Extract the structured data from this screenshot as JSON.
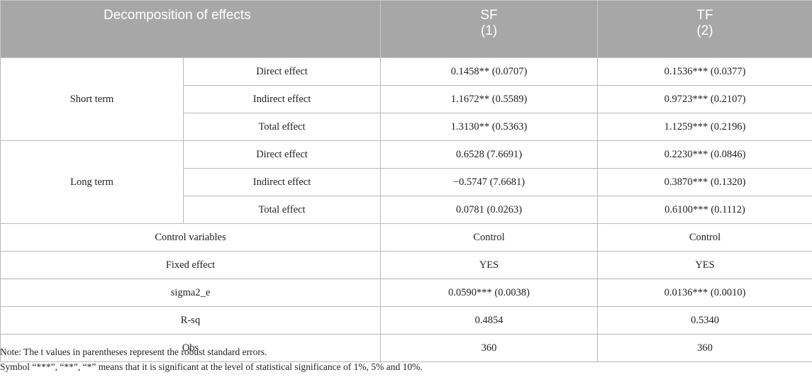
{
  "header": {
    "decomposition": "Decomposition of effects",
    "col1_name": "SF",
    "col1_num": "(1)",
    "col2_name": "TF",
    "col2_num": "(2)"
  },
  "short_term": {
    "label": "Short term",
    "rows": [
      {
        "effect": "Direct effect",
        "sf": "0.1458** (0.0707)",
        "tf": "0.1536*** (0.0377)"
      },
      {
        "effect": "Indirect effect",
        "sf": "1.1672** (0.5589)",
        "tf": "0.9723*** (0.2107)"
      },
      {
        "effect": "Total effect",
        "sf": "1.3130** (0.5363)",
        "tf": "1.1259*** (0.2196)"
      }
    ]
  },
  "long_term": {
    "label": "Long term",
    "rows": [
      {
        "effect": "Direct effect",
        "sf": "0.6528 (7.6691)",
        "tf": "0.2230*** (0.0846)"
      },
      {
        "effect": "Indirect effect",
        "sf": "−0.5747 (7.6681)",
        "tf": "0.3870*** (0.1320)"
      },
      {
        "effect": "Total effect",
        "sf": "0.0781 (0.0263)",
        "tf": "0.6100*** (0.1112)"
      }
    ]
  },
  "summary_rows": [
    {
      "label": "Control variables",
      "sf": "Control",
      "tf": "Control"
    },
    {
      "label": "Fixed effect",
      "sf": "YES",
      "tf": "YES"
    },
    {
      "label": "sigma2_e",
      "sf": "0.0590*** (0.0038)",
      "tf": "0.0136*** (0.0010)"
    },
    {
      "label": "R-sq",
      "sf": "0.4854",
      "tf": "0.5340"
    },
    {
      "label": "Obs",
      "sf": "360",
      "tf": "360"
    }
  ],
  "notes": {
    "line1": "Note: The t values in parentheses represent the robust standard errors.",
    "line2": "Symbol “***”, “**”, “*” means that it is significant at the level of statistical significance of 1%, 5% and 10%."
  }
}
